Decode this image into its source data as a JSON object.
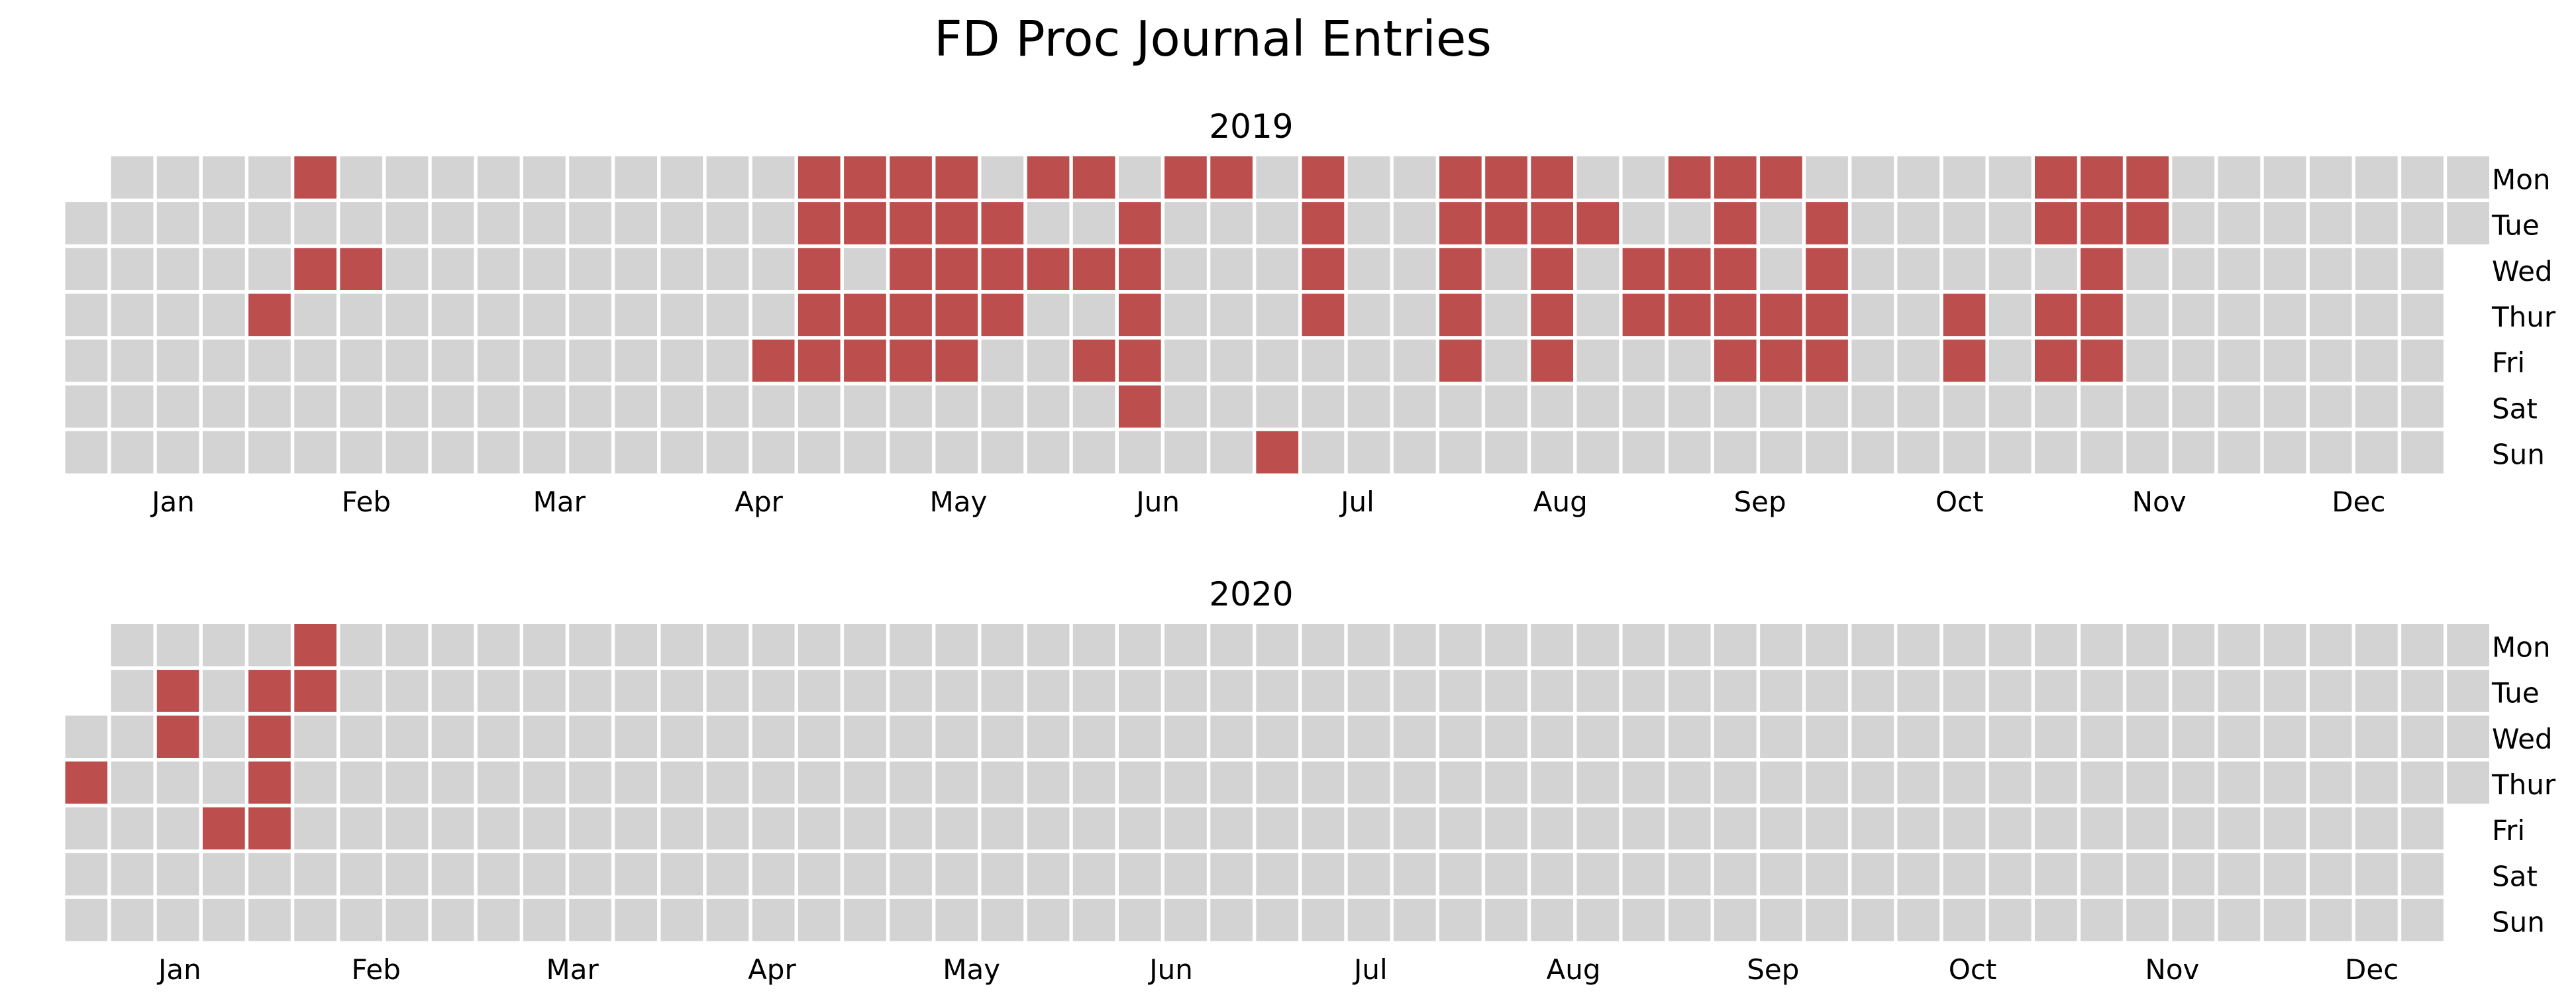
{
  "chart_data": {
    "type": "heatmap",
    "title": "FD Proc Journal Entries",
    "colors": {
      "active": "#BC4E4E",
      "empty": "#D3D3D3",
      "background": "#FFFFFF"
    },
    "grid": false,
    "day_labels": [
      "Mon",
      "Tue",
      "Wed",
      "Thur",
      "Fri",
      "Sat",
      "Sun"
    ],
    "month_labels": [
      "Jan",
      "Feb",
      "Mar",
      "Apr",
      "May",
      "Jun",
      "Jul",
      "Aug",
      "Sep",
      "Oct",
      "Nov",
      "Dec"
    ],
    "years": [
      {
        "year": "2019",
        "active_dates": [
          "2019-02-04",
          "2019-02-06",
          "2019-01-31",
          "2019-02-13",
          "2019-04-19",
          "2019-04-22",
          "2019-04-23",
          "2019-04-24",
          "2019-04-25",
          "2019-04-26",
          "2019-04-29",
          "2019-04-30",
          "2019-05-02",
          "2019-05-03",
          "2019-05-06",
          "2019-05-07",
          "2019-05-08",
          "2019-05-09",
          "2019-05-10",
          "2019-05-13",
          "2019-05-14",
          "2019-05-15",
          "2019-05-16",
          "2019-05-14",
          "2019-05-15",
          "2019-05-16",
          "2019-05-17",
          "2019-05-21",
          "2019-05-22",
          "2019-05-23",
          "2019-05-27",
          "2019-05-29",
          "2019-06-03",
          "2019-06-05",
          "2019-06-07",
          "2019-06-11",
          "2019-06-12",
          "2019-06-13",
          "2019-06-14",
          "2019-06-15",
          "2019-06-17",
          "2019-06-24",
          "2019-07-08",
          "2019-07-09",
          "2019-07-10",
          "2019-07-11",
          "2019-07-07",
          "2019-07-29",
          "2019-07-30",
          "2019-07-31",
          "2019-08-01",
          "2019-08-02",
          "2019-08-05",
          "2019-08-06",
          "2019-08-12",
          "2019-08-13",
          "2019-08-14",
          "2019-08-15",
          "2019-08-16",
          "2019-08-20",
          "2019-08-28",
          "2019-08-29",
          "2019-09-02",
          "2019-09-04",
          "2019-09-05",
          "2019-09-09",
          "2019-09-10",
          "2019-09-11",
          "2019-09-12",
          "2019-09-13",
          "2019-09-16",
          "2019-09-19",
          "2019-09-20",
          "2019-09-24",
          "2019-09-25",
          "2019-09-26",
          "2019-09-27",
          "2019-10-17",
          "2019-10-18",
          "2019-10-28",
          "2019-10-29",
          "2019-10-31",
          "2019-11-01",
          "2019-11-04",
          "2019-11-05",
          "2019-11-06",
          "2019-11-07",
          "2019-11-08",
          "2019-11-11",
          "2019-11-12"
        ]
      },
      {
        "year": "2020",
        "active_dates": [
          "2020-01-02",
          "2020-01-14",
          "2020-01-15",
          "2020-01-24",
          "2020-01-28",
          "2020-01-29",
          "2020-01-30",
          "2020-01-31",
          "2020-02-03",
          "2020-02-04"
        ]
      }
    ]
  }
}
